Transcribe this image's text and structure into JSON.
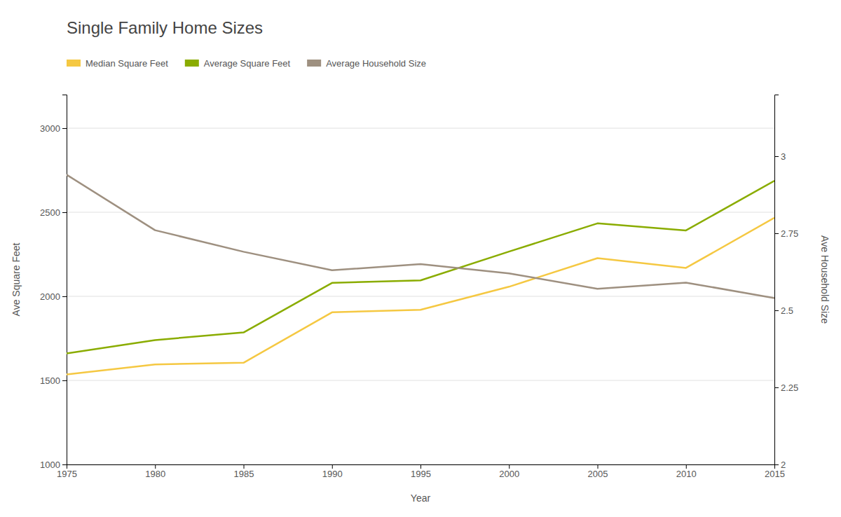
{
  "chart_data": {
    "type": "line",
    "title": "Single Family Home Sizes",
    "xlabel": "Year",
    "ylabel": "Ave Square Feet",
    "y2label": "Ave Household Size",
    "x": [
      1975,
      1980,
      1985,
      1990,
      1995,
      2000,
      2005,
      2010,
      2015
    ],
    "series": [
      {
        "name": "Median Square Feet",
        "color": "#f5c842",
        "values": [
          1535,
          1595,
          1605,
          1905,
          1920,
          2057,
          2227,
          2169,
          2467
        ]
      },
      {
        "name": "Average Square Feet",
        "color": "#8aac00",
        "values": [
          1660,
          1740,
          1785,
          2080,
          2095,
          2266,
          2434,
          2392,
          2687
        ]
      },
      {
        "name": "Average Household Size",
        "color": "#9e9080",
        "axis": "y2",
        "values": [
          2.94,
          2.76,
          2.69,
          2.63,
          2.65,
          2.62,
          2.57,
          2.59,
          2.54
        ]
      }
    ],
    "xlim": [
      1975,
      2015
    ],
    "xticks": [
      1975,
      1980,
      1985,
      1990,
      1995,
      2000,
      2005,
      2010,
      2015
    ],
    "ylim": [
      1000,
      3200
    ],
    "yticks": [
      1000,
      1500,
      2000,
      2500,
      3000
    ],
    "y2lim": [
      2,
      3.2
    ],
    "y2ticks": [
      2,
      2.25,
      2.5,
      2.75,
      3
    ],
    "grid": true,
    "legend": "upper left"
  }
}
